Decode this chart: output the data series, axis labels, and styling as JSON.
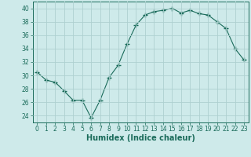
{
  "x": [
    0,
    1,
    2,
    3,
    4,
    5,
    6,
    7,
    8,
    9,
    10,
    11,
    12,
    13,
    14,
    15,
    16,
    17,
    18,
    19,
    20,
    21,
    22,
    23
  ],
  "y": [
    30.5,
    29.3,
    29.0,
    27.7,
    26.3,
    26.3,
    23.7,
    26.3,
    29.7,
    31.5,
    34.7,
    37.5,
    39.0,
    39.5,
    39.7,
    40.0,
    39.3,
    39.7,
    39.2,
    39.0,
    38.0,
    37.0,
    34.0,
    32.3
  ],
  "line_color": "#1a6b5a",
  "marker": "+",
  "marker_size": 4,
  "bg_color": "#ceeaea",
  "grid_color": "#aed0d0",
  "xlabel": "Humidex (Indice chaleur)",
  "ylim": [
    23,
    41
  ],
  "xlim": [
    -0.5,
    23.5
  ],
  "yticks": [
    24,
    26,
    28,
    30,
    32,
    34,
    36,
    38,
    40
  ],
  "xticks": [
    0,
    1,
    2,
    3,
    4,
    5,
    6,
    7,
    8,
    9,
    10,
    11,
    12,
    13,
    14,
    15,
    16,
    17,
    18,
    19,
    20,
    21,
    22,
    23
  ],
  "tick_color": "#1a6b5a",
  "label_fontsize": 7,
  "tick_fontsize": 5.5
}
